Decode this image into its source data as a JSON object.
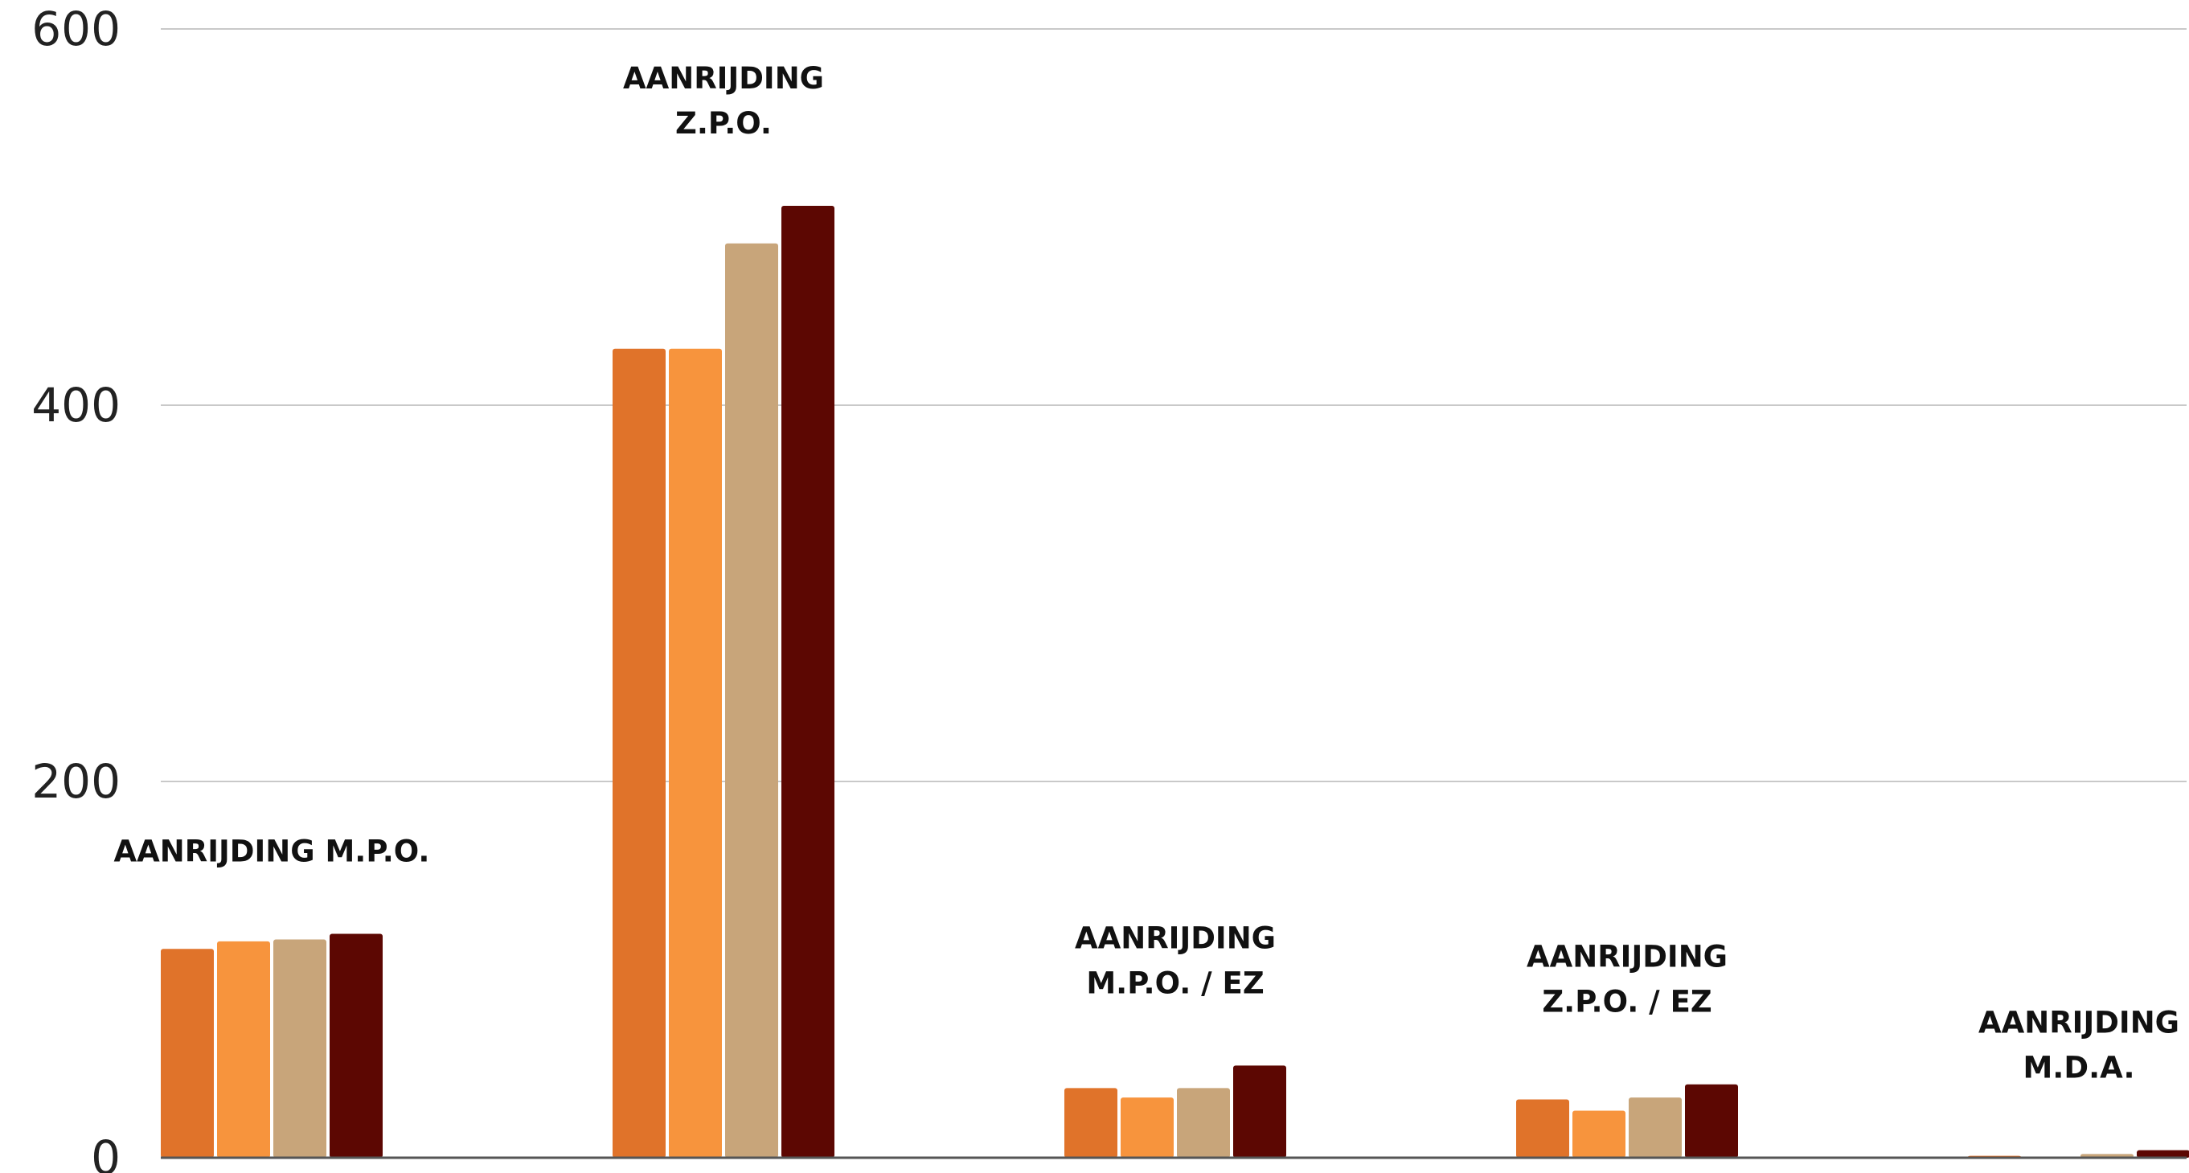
{
  "chart_data": {
    "type": "bar",
    "title": "",
    "xlabel": "",
    "ylabel": "",
    "ylim": [
      0,
      600
    ],
    "yticks": [
      "0",
      "200",
      "400",
      "600"
    ],
    "grid": true,
    "legend": "none",
    "categories": [
      [
        "AANRIJDING M.P.O."
      ],
      [
        "AANRIJDING",
        "Z.P.O."
      ],
      [
        "AANRIJDING",
        "M.P.O. / EZ"
      ],
      [
        "AANRIJDING",
        "Z.P.O. / EZ"
      ],
      [
        "AANRIJDING",
        "M.D.A."
      ]
    ],
    "series": [
      {
        "color": "#e0732a",
        "values": [
          111,
          430,
          37,
          31,
          1
        ]
      },
      {
        "color": "#f7943d",
        "values": [
          115,
          430,
          32,
          25,
          0
        ]
      },
      {
        "color": "#c8a57a",
        "values": [
          116,
          486,
          37,
          32,
          2
        ]
      },
      {
        "color": "#5c0702",
        "values": [
          119,
          506,
          49,
          39,
          4
        ]
      }
    ]
  }
}
